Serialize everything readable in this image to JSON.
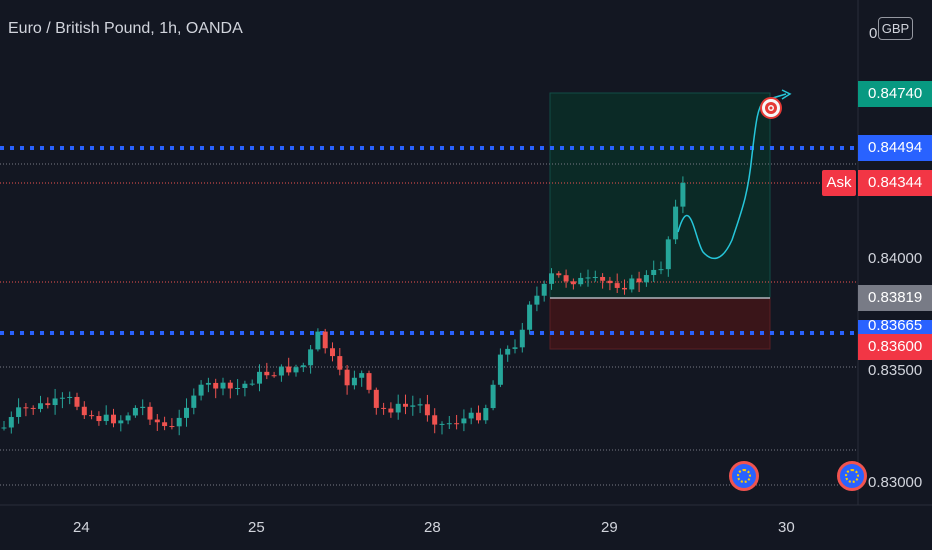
{
  "header": {
    "symbol_title": "Euro / British Pound, 1h, OANDA",
    "currency": "GBP",
    "currency_prefix": "0"
  },
  "price_axis": {
    "ticks": [
      "0.84000",
      "0.83500",
      "0.83000"
    ],
    "labels": {
      "target": "0.84740",
      "resistance": "0.84494",
      "ask": "0.84344",
      "ask_tag": "Ask",
      "entry": "0.83819",
      "support": "0.83665",
      "stop": "0.83600"
    }
  },
  "time_axis": {
    "labels": [
      "24",
      "25",
      "28",
      "29",
      "30"
    ]
  },
  "colors": {
    "background": "#131722",
    "up": "#26a69a",
    "down": "#ef5350",
    "target_label": "#089981",
    "resistance_label": "#2962ff",
    "ask_label": "#f23645",
    "entry_label": "#787b86",
    "stop_label": "#f23645",
    "dotted_line": "#2962ff",
    "projection": "#26c6da"
  },
  "icons": {
    "target": "target-icon",
    "events": [
      "economic-event-icon",
      "economic-event-icon"
    ]
  }
}
